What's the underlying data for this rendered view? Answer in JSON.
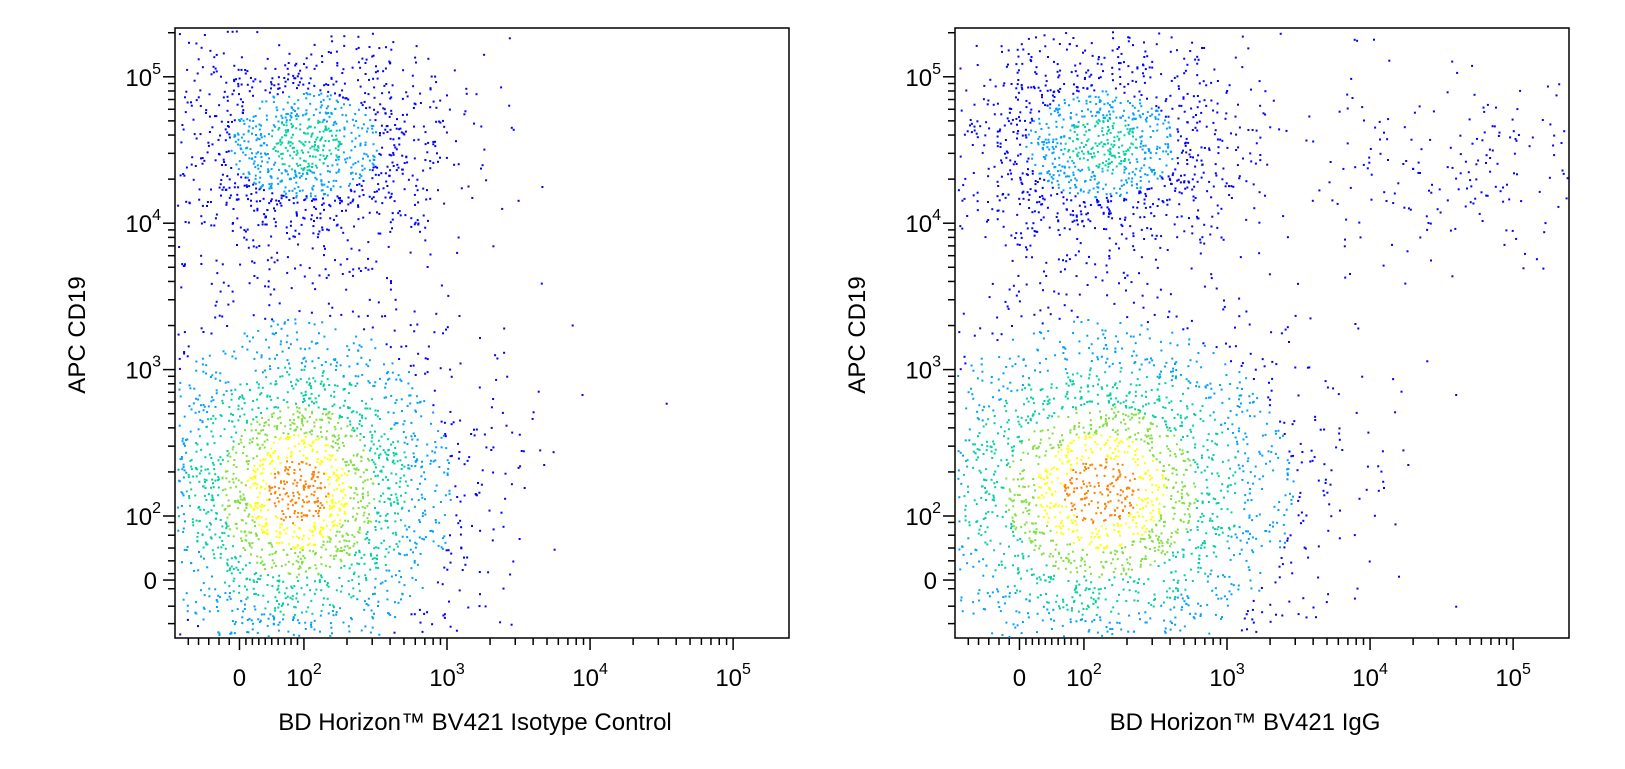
{
  "chart_data": [
    {
      "type": "scatter",
      "title": "",
      "xlabel": "BD Horizon™ BV421 Isotype Control",
      "ylabel": "APC CD19",
      "x_scale": "biexponential",
      "y_scale": "biexponential",
      "x_ticks": [
        {
          "value": 0,
          "label": "0"
        },
        {
          "value": 100,
          "label": "10",
          "exp": "2"
        },
        {
          "value": 1000,
          "label": "10",
          "exp": "3"
        },
        {
          "value": 10000,
          "label": "10",
          "exp": "4"
        },
        {
          "value": 100000,
          "label": "10",
          "exp": "5"
        }
      ],
      "y_ticks": [
        {
          "value": 0,
          "label": "0"
        },
        {
          "value": 100,
          "label": "10",
          "exp": "2"
        },
        {
          "value": 1000,
          "label": "10",
          "exp": "3"
        },
        {
          "value": 10000,
          "label": "10",
          "exp": "4"
        },
        {
          "value": 100000,
          "label": "10",
          "exp": "5"
        }
      ],
      "populations": [
        {
          "center_x": 100,
          "center_y": 35000,
          "spread_x": 0.35,
          "spread_y": 0.25,
          "density": "high"
        },
        {
          "center_x": 90,
          "center_y": 150,
          "spread_x": 0.4,
          "spread_y": 0.45,
          "density": "very high"
        }
      ],
      "colormap": [
        "#0000ff",
        "#00a0ff",
        "#00d0a0",
        "#80e040",
        "#ffff00",
        "#ff8000"
      ]
    },
    {
      "type": "scatter",
      "title": "",
      "xlabel": "BD Horizon™ BV421 IgG",
      "ylabel": "APC CD19",
      "x_scale": "biexponential",
      "y_scale": "biexponential",
      "x_ticks": [
        {
          "value": 0,
          "label": "0"
        },
        {
          "value": 100,
          "label": "10",
          "exp": "2"
        },
        {
          "value": 1000,
          "label": "10",
          "exp": "3"
        },
        {
          "value": 10000,
          "label": "10",
          "exp": "4"
        },
        {
          "value": 100000,
          "label": "10",
          "exp": "5"
        }
      ],
      "y_ticks": [
        {
          "value": 0,
          "label": "0"
        },
        {
          "value": 100,
          "label": "10",
          "exp": "2"
        },
        {
          "value": 1000,
          "label": "10",
          "exp": "3"
        },
        {
          "value": 10000,
          "label": "10",
          "exp": "4"
        },
        {
          "value": 100000,
          "label": "10",
          "exp": "5"
        }
      ],
      "populations": [
        {
          "center_x": 130,
          "center_y": 35000,
          "spread_x": 0.35,
          "spread_y": 0.25,
          "density": "high"
        },
        {
          "center_x": 130,
          "center_y": 150,
          "spread_x": 0.5,
          "spread_y": 0.45,
          "density": "very high"
        },
        {
          "center_x": 50000,
          "center_y": 25000,
          "spread_x": 0.4,
          "spread_y": 0.25,
          "density": "low"
        }
      ],
      "colormap": [
        "#0000ff",
        "#00a0ff",
        "#00d0a0",
        "#80e040",
        "#ffff00",
        "#ff8000"
      ]
    }
  ]
}
